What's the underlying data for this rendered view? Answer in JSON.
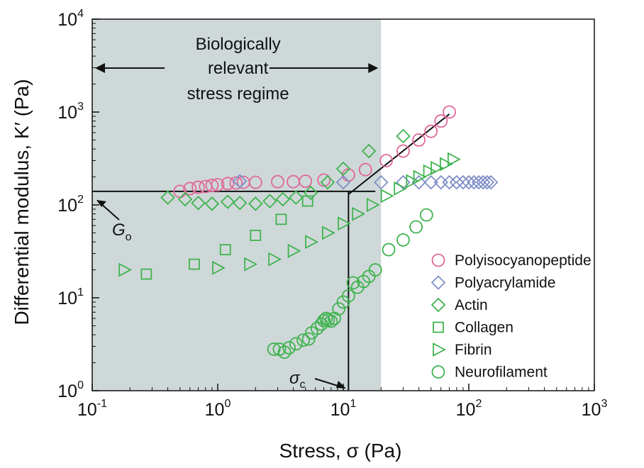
{
  "chart_data": {
    "type": "scatter",
    "xscale": "log",
    "yscale": "log",
    "xlim": [
      0.1,
      1000
    ],
    "ylim": [
      1,
      10000
    ],
    "xlabel": "Stress, σ (Pa)",
    "ylabel": "Differential modulus, K′ (Pa)",
    "x_ticks": [
      {
        "value": 0.1,
        "base": "10",
        "exp": "-1"
      },
      {
        "value": 1,
        "base": "10",
        "exp": "0"
      },
      {
        "value": 10,
        "base": "10",
        "exp": "1"
      },
      {
        "value": 100,
        "base": "10",
        "exp": "2"
      },
      {
        "value": 1000,
        "base": "10",
        "exp": "3"
      }
    ],
    "y_ticks": [
      {
        "value": 1,
        "base": "10",
        "exp": "0"
      },
      {
        "value": 10,
        "base": "10",
        "exp": "1"
      },
      {
        "value": 100,
        "base": "10",
        "exp": "2"
      },
      {
        "value": 1000,
        "base": "10",
        "exp": "3"
      },
      {
        "value": 10000,
        "base": "10",
        "exp": "4"
      }
    ],
    "grid": false,
    "legend_position": "right",
    "shaded_region": {
      "x_range": [
        0.1,
        20
      ],
      "color": "#cfd8d8",
      "label_lines": [
        "Biologically",
        "relevant",
        "stress regime"
      ]
    },
    "annotations": {
      "g0_value": 140,
      "g0_label": "G",
      "g0_sub": "o",
      "sigma_c_value": 11,
      "sigma_c_label": "σ",
      "sigma_c_sub": "c",
      "stiffening_line": [
        [
          11,
          130
        ],
        [
          70,
          950
        ]
      ]
    },
    "series": [
      {
        "name": "Polyisocyanopeptide",
        "marker": "circle",
        "color": "#e0689a",
        "points": [
          [
            0.5,
            140
          ],
          [
            0.6,
            150
          ],
          [
            0.7,
            155
          ],
          [
            0.8,
            158
          ],
          [
            0.9,
            162
          ],
          [
            1.0,
            165
          ],
          [
            1.2,
            170
          ],
          [
            1.4,
            172
          ],
          [
            1.6,
            175
          ],
          [
            2.0,
            175
          ],
          [
            3.0,
            178
          ],
          [
            4.0,
            178
          ],
          [
            5.0,
            180
          ],
          [
            7.0,
            185
          ],
          [
            11,
            210
          ],
          [
            15,
            240
          ],
          [
            22,
            300
          ],
          [
            30,
            380
          ],
          [
            40,
            500
          ],
          [
            50,
            620
          ],
          [
            60,
            800
          ],
          [
            70,
            1000
          ]
        ]
      },
      {
        "name": "Polyacrylamide",
        "marker": "diamond",
        "color": "#7f8fc8",
        "points": [
          [
            1.5,
            180
          ],
          [
            10,
            175
          ],
          [
            20,
            175
          ],
          [
            30,
            175
          ],
          [
            40,
            175
          ],
          [
            50,
            175
          ],
          [
            60,
            175
          ],
          [
            70,
            175
          ],
          [
            80,
            175
          ],
          [
            90,
            175
          ],
          [
            100,
            175
          ],
          [
            110,
            175
          ],
          [
            120,
            175
          ],
          [
            130,
            175
          ],
          [
            140,
            175
          ],
          [
            150,
            175
          ]
        ]
      },
      {
        "name": "Actin",
        "marker": "diamond",
        "color": "#3fb34f",
        "points": [
          [
            0.4,
            120
          ],
          [
            0.55,
            115
          ],
          [
            0.7,
            105
          ],
          [
            0.9,
            103
          ],
          [
            1.2,
            108
          ],
          [
            1.5,
            105
          ],
          [
            2.0,
            103
          ],
          [
            2.6,
            110
          ],
          [
            3.3,
            115
          ],
          [
            4.2,
            120
          ],
          [
            5.5,
            135
          ],
          [
            7.5,
            175
          ],
          [
            10,
            245
          ],
          [
            16,
            380
          ],
          [
            30,
            550
          ]
        ]
      },
      {
        "name": "Collagen",
        "marker": "square",
        "color": "#3fb34f",
        "points": [
          [
            0.27,
            18
          ],
          [
            0.65,
            23
          ],
          [
            1.15,
            33
          ],
          [
            2.0,
            47
          ],
          [
            3.2,
            70
          ],
          [
            5.2,
            110
          ]
        ]
      },
      {
        "name": "Fibrin",
        "marker": "triangle",
        "color": "#3fb34f",
        "points": [
          [
            0.18,
            20
          ],
          [
            1.0,
            21
          ],
          [
            1.8,
            23
          ],
          [
            2.8,
            26
          ],
          [
            4.0,
            32
          ],
          [
            5.5,
            40
          ],
          [
            7.5,
            50
          ],
          [
            10,
            63
          ],
          [
            13,
            80
          ],
          [
            17,
            100
          ],
          [
            22,
            125
          ],
          [
            28,
            150
          ],
          [
            35,
            180
          ],
          [
            40,
            200
          ],
          [
            48,
            230
          ],
          [
            55,
            250
          ],
          [
            65,
            275
          ],
          [
            75,
            310
          ]
        ]
      },
      {
        "name": "Neurofilament",
        "marker": "circle",
        "color": "#3fb34f",
        "points": [
          [
            2.8,
            2.8
          ],
          [
            3.1,
            2.8
          ],
          [
            3.4,
            2.6
          ],
          [
            3.7,
            2.9
          ],
          [
            4.2,
            3.2
          ],
          [
            4.8,
            3.5
          ],
          [
            5.3,
            3.6
          ],
          [
            5.6,
            4.2
          ],
          [
            6.2,
            4.7
          ],
          [
            6.7,
            5.2
          ],
          [
            7.0,
            5.7
          ],
          [
            7.3,
            6.0
          ],
          [
            7.6,
            5.8
          ],
          [
            8.0,
            5.6
          ],
          [
            8.5,
            6.0
          ],
          [
            9.2,
            7.6
          ],
          [
            10,
            9.0
          ],
          [
            11,
            10.5
          ],
          [
            12,
            14.5
          ],
          [
            13,
            13.0
          ],
          [
            14.5,
            15.0
          ],
          [
            16,
            17.0
          ],
          [
            18,
            20.0
          ],
          [
            23,
            33
          ],
          [
            30,
            42
          ],
          [
            38,
            58
          ],
          [
            46,
            78
          ]
        ]
      }
    ]
  }
}
